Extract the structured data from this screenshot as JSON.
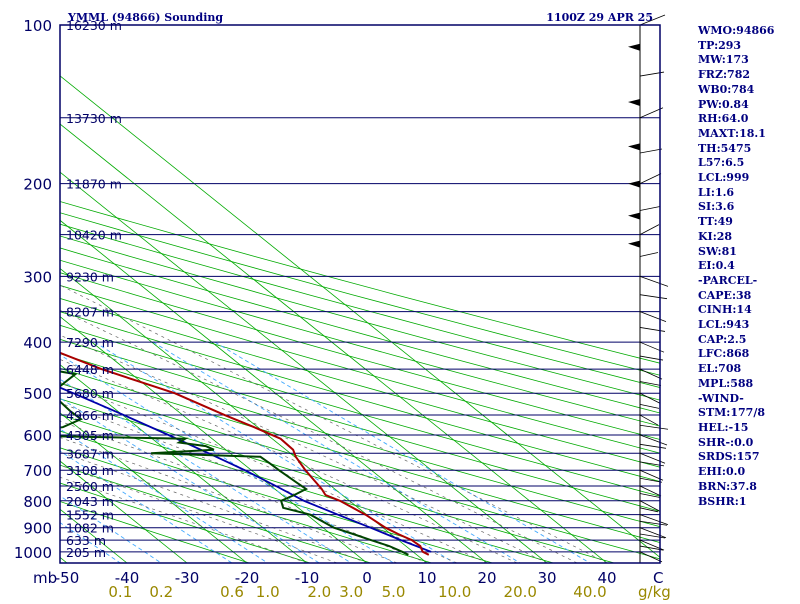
{
  "chart_data": {
    "type": "skew-t",
    "station": "YMML (94866) Sounding",
    "time": "1100Z 29 APR 25",
    "pressure_ticks": [
      "100",
      "200",
      "300",
      "400",
      "500",
      "600",
      "700",
      "800",
      "900",
      "1000"
    ],
    "height_labels": [
      {
        "p": 100,
        "label": "16230 m"
      },
      {
        "p": 150,
        "label": "13730 m"
      },
      {
        "p": 200,
        "label": "11870 m"
      },
      {
        "p": 250,
        "label": "10420 m"
      },
      {
        "p": 300,
        "label": "9230 m"
      },
      {
        "p": 350,
        "label": "8207 m"
      },
      {
        "p": 400,
        "label": "7290 m"
      },
      {
        "p": 450,
        "label": "6448 m"
      },
      {
        "p": 500,
        "label": "5680 m"
      },
      {
        "p": 550,
        "label": "4966 m"
      },
      {
        "p": 600,
        "label": "4305 m"
      },
      {
        "p": 650,
        "label": "3687 m"
      },
      {
        "p": 700,
        "label": "3108 m"
      },
      {
        "p": 750,
        "label": "2560 m"
      },
      {
        "p": 800,
        "label": "2043 m"
      },
      {
        "p": 850,
        "label": "1552 m"
      },
      {
        "p": 900,
        "label": "1082 m"
      },
      {
        "p": 950,
        "label": "633 m"
      },
      {
        "p": 1000,
        "label": "205 m"
      }
    ],
    "temp_ticks": [
      "-50",
      "-40",
      "-30",
      "-20",
      "-10",
      "0",
      "10",
      "20",
      "30",
      "40"
    ],
    "temp_unit": "C",
    "p_unit": "mb",
    "mixing_ratio_ticks": [
      "0.1",
      "0.2",
      "0.6",
      "1.0",
      "2.0",
      "3.0",
      "5.0",
      "10.0",
      "20.0",
      "40.0"
    ],
    "mixing_ratio_unit": "g/kg",
    "temperature": [
      [
        1013,
        12.0
      ],
      [
        1000,
        11.6
      ],
      [
        975,
        12.4
      ],
      [
        950,
        12.2
      ],
      [
        925,
        11.2
      ],
      [
        900,
        10.4
      ],
      [
        850,
        9.8
      ],
      [
        800,
        8.4
      ],
      [
        780,
        7.2
      ],
      [
        760,
        7.8
      ],
      [
        740,
        8.2
      ],
      [
        700,
        9.0
      ],
      [
        660,
        10.2
      ],
      [
        640,
        11.2
      ],
      [
        610,
        11.4
      ],
      [
        580,
        9.4
      ],
      [
        550,
        7.0
      ],
      [
        500,
        3.2
      ],
      [
        450,
        -4.0
      ],
      [
        400,
        -9.8
      ],
      [
        350,
        -17.0
      ],
      [
        300,
        -23.7
      ],
      [
        270,
        -26.6
      ],
      [
        250,
        -27.7
      ],
      [
        200,
        -31.8
      ],
      [
        150,
        -38.3
      ],
      [
        125,
        -41.6
      ],
      [
        100,
        -47.4
      ]
    ],
    "dewpoint": [
      [
        1013,
        8.6
      ],
      [
        1000,
        8.2
      ],
      [
        975,
        7.2
      ],
      [
        950,
        5.4
      ],
      [
        925,
        3.7
      ],
      [
        900,
        1.8
      ],
      [
        850,
        0.6
      ],
      [
        825,
        -2.5
      ],
      [
        800,
        -1.4
      ],
      [
        780,
        2.0
      ],
      [
        760,
        5.2
      ],
      [
        740,
        5.0
      ],
      [
        700,
        4.6
      ],
      [
        680,
        4.5
      ],
      [
        660,
        4.3
      ],
      [
        650,
        -13.2
      ],
      [
        640,
        -2.0
      ],
      [
        630,
        -2.6
      ],
      [
        620,
        -6.3
      ],
      [
        610,
        -4.5
      ],
      [
        600,
        -36.3
      ],
      [
        580,
        -22.5
      ],
      [
        560,
        -17.8
      ],
      [
        540,
        -17.9
      ],
      [
        500,
        -17.4
      ],
      [
        460,
        -9.4
      ],
      [
        440,
        -16.7
      ],
      [
        420,
        -20.1
      ],
      [
        400,
        -21.6
      ],
      [
        390,
        -17.7
      ],
      [
        380,
        -17.5
      ],
      [
        370,
        -18.9
      ],
      [
        360,
        -18.8
      ],
      [
        350,
        -14.5
      ],
      [
        340,
        -13.3
      ],
      [
        330,
        -17.0
      ],
      [
        320,
        -17.1
      ],
      [
        310,
        -21.9
      ],
      [
        290,
        -37.6
      ],
      [
        280,
        -41.8
      ],
      [
        250,
        -46.8
      ],
      [
        200,
        -56.1
      ],
      [
        150,
        -74.5
      ],
      [
        100,
        -79.3
      ]
    ],
    "parcel": [
      [
        1000,
        13.0
      ],
      [
        950,
        10.4
      ],
      [
        900,
        7.9
      ],
      [
        850,
        5.2
      ],
      [
        800,
        2.4
      ],
      [
        750,
        0.8
      ],
      [
        700,
        -1.1
      ],
      [
        650,
        -3.6
      ],
      [
        600,
        -6.5
      ],
      [
        550,
        -9.8
      ],
      [
        500,
        -13.7
      ],
      [
        450,
        -18.3
      ],
      [
        400,
        -23.6
      ],
      [
        350,
        -30.2
      ],
      [
        300,
        -38.0
      ],
      [
        250,
        -47.5
      ],
      [
        200,
        -58.6
      ],
      [
        150,
        -72.5
      ],
      [
        100,
        -91.4
      ]
    ],
    "indices": [
      "WMO:94866",
      "TP:293",
      "MW:173",
      "FRZ:782",
      "WB0:784",
      "PW:0.84",
      "RH:64.0",
      "MAXT:18.1",
      "TH:5475",
      "L57:6.5",
      "LCL:999",
      "LI:1.6",
      "SI:3.6",
      "TT:49",
      "KI:28",
      "SW:81",
      "EI:0.4",
      "-PARCEL-",
      "CAPE:38",
      "CINH:14",
      "LCL:943",
      "CAP:2.5",
      "LFC:868",
      "EL:708",
      "MPL:588",
      "-WIND-",
      "STM:177/8",
      "HEL:-15",
      "SHR-:0.0",
      "SRDS:157",
      "EHI:0.0",
      "BRN:37.8",
      "BSHR:1"
    ],
    "colors": {
      "temperature": "#aa0000",
      "dewpoint": "#004400",
      "parcel": "#0000aa",
      "isobar": "#000066",
      "isotherm": "#00aa00",
      "mixing": "#44aaff",
      "text": "#000080",
      "mixlabel": "#998800"
    }
  }
}
